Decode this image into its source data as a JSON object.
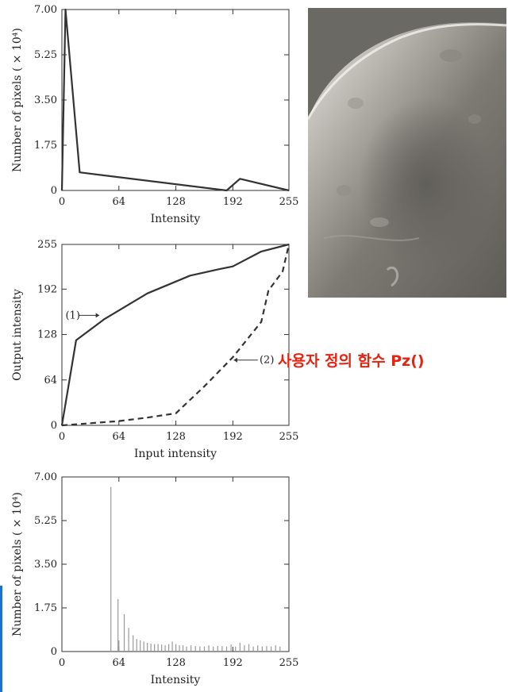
{
  "chart_data": [
    {
      "type": "line",
      "xlabel": "Intensity",
      "ylabel": "Number of pixels ( × 10⁴)",
      "xlim": [
        0,
        255
      ],
      "ylim": [
        0,
        7.0
      ],
      "x_ticks": [
        "0",
        "64",
        "128",
        "192",
        "255"
      ],
      "y_ticks": [
        "0",
        "1.75",
        "3.50",
        "5.25",
        "7.00"
      ],
      "x_tick_values": [
        0,
        64,
        128,
        192,
        255
      ],
      "y_tick_values": [
        0,
        1.75,
        3.5,
        5.25,
        7.0
      ],
      "grid": false,
      "series": [
        {
          "x": [
            0,
            4,
            20,
            185,
            200,
            255
          ],
          "y": [
            0,
            7.0,
            0.7,
            0.0,
            0.45,
            0.0
          ]
        }
      ]
    },
    {
      "type": "line",
      "xlabel": "Input intensity",
      "ylabel": "Output intensity",
      "xlim": [
        0,
        255
      ],
      "ylim": [
        0,
        255
      ],
      "x_ticks": [
        "0",
        "64",
        "128",
        "192",
        "255"
      ],
      "y_ticks": [
        "0",
        "64",
        "128",
        "192",
        "255"
      ],
      "x_tick_values": [
        0,
        64,
        128,
        192,
        255
      ],
      "y_tick_values": [
        0,
        64,
        128,
        192,
        255
      ],
      "grid": false,
      "series": [
        {
          "name": "(1)",
          "style": "solid",
          "x": [
            0,
            16,
            48,
            96,
            144,
            176,
            192,
            224,
            255
          ],
          "y": [
            0,
            120,
            150,
            186,
            211,
            220,
            224,
            245,
            255
          ]
        },
        {
          "name": "(2)",
          "style": "dashed",
          "x": [
            0,
            32,
            64,
            96,
            128,
            160,
            192,
            224,
            232,
            248,
            255
          ],
          "y": [
            0,
            3,
            6,
            11,
            17,
            55,
            96,
            146,
            190,
            217,
            255
          ]
        }
      ],
      "annotations": [
        {
          "text": "(1)",
          "series": 0
        },
        {
          "text": "(2)",
          "series": 1
        }
      ]
    },
    {
      "type": "bar",
      "xlabel": "Intensity",
      "ylabel": "Number of pixels ( × 10⁴)",
      "xlim": [
        0,
        255
      ],
      "ylim": [
        0,
        7.0
      ],
      "x_ticks": [
        "0",
        "64",
        "128",
        "192",
        "255"
      ],
      "y_ticks": [
        "0",
        "1.75",
        "3.50",
        "5.25",
        "7.00"
      ],
      "x_tick_values": [
        0,
        64,
        128,
        192,
        255
      ],
      "y_tick_values": [
        0,
        1.75,
        3.5,
        5.25,
        7.0
      ],
      "grid": false,
      "x": [
        55,
        63,
        64,
        70,
        75,
        80,
        84,
        88,
        92,
        96,
        100,
        104,
        108,
        112,
        116,
        120,
        124,
        128,
        132,
        136,
        140,
        145,
        150,
        155,
        160,
        165,
        170,
        175,
        180,
        185,
        190,
        195,
        200,
        205,
        210,
        215,
        220,
        225,
        230,
        235,
        240,
        245
      ],
      "values": [
        6.6,
        2.1,
        0.45,
        1.5,
        0.95,
        0.65,
        0.5,
        0.45,
        0.4,
        0.35,
        0.32,
        0.3,
        0.3,
        0.28,
        0.25,
        0.3,
        0.4,
        0.3,
        0.25,
        0.25,
        0.2,
        0.25,
        0.22,
        0.2,
        0.2,
        0.25,
        0.2,
        0.22,
        0.22,
        0.2,
        0.28,
        0.2,
        0.35,
        0.25,
        0.3,
        0.2,
        0.25,
        0.2,
        0.22,
        0.2,
        0.25,
        0.2
      ]
    }
  ],
  "image_panel": {
    "description": "moon-surface-photo"
  },
  "caption": {
    "text": "사용자 정의 함수 Pz()",
    "color": "#e62310"
  }
}
